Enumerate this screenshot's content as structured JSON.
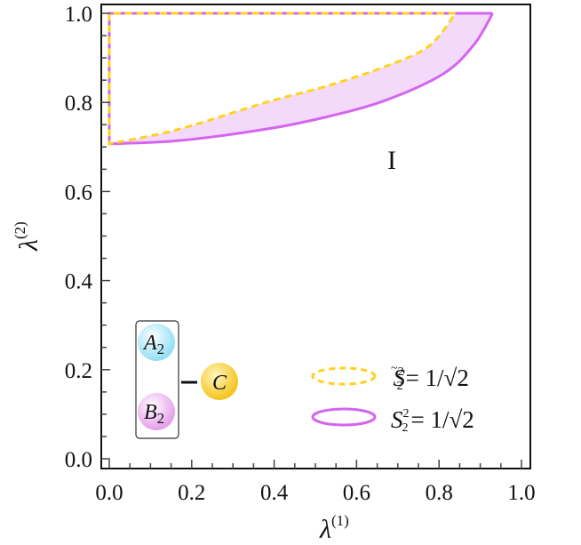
{
  "chart_data": {
    "type": "area",
    "xlabel": {
      "symbol": "λ",
      "sup": "(1)"
    },
    "ylabel": {
      "symbol": "λ",
      "sup": "(2)"
    },
    "xlim": [
      0,
      1
    ],
    "ylim": [
      0,
      1
    ],
    "x_ticks": [
      "0.0",
      "0.2",
      "0.4",
      "0.6",
      "0.8",
      "1.0"
    ],
    "y_ticks": [
      "0.0",
      "0.2",
      "0.4",
      "0.6",
      "0.8",
      "1.0"
    ],
    "grid": false,
    "region_label": "I",
    "series": [
      {
        "key": "tilde",
        "style": "dashed",
        "color": "#FFD21F",
        "legend": {
          "symbol": "S",
          "accent": "~",
          "sup": "2",
          "sub": "2",
          "rhs": "= 1/√2"
        },
        "boundary_points": [
          [
            0,
            0.707
          ],
          [
            0.166,
            0.739
          ],
          [
            0.38,
            0.8
          ],
          [
            0.525,
            0.836
          ],
          [
            0.668,
            0.88
          ],
          [
            0.775,
            0.926
          ],
          [
            0.84,
            1.0
          ]
        ]
      },
      {
        "key": "plain",
        "style": "solid",
        "color": "#D465F0",
        "legend": {
          "symbol": "S",
          "accent": "",
          "sup": "2",
          "sub": "2",
          "rhs": "= 1/√2"
        },
        "boundary_points": [
          [
            0,
            0.707
          ],
          [
            0.166,
            0.714
          ],
          [
            0.38,
            0.74
          ],
          [
            0.525,
            0.767
          ],
          [
            0.668,
            0.804
          ],
          [
            0.81,
            0.864
          ],
          [
            0.885,
            0.93
          ],
          [
            0.93,
            1.0
          ]
        ]
      }
    ],
    "fill_color": "#F4DAFA"
  },
  "schematic": {
    "a": {
      "letter": "A",
      "sub": "2",
      "color": "#8FDDF5"
    },
    "b": {
      "letter": "B",
      "sub": "2",
      "color": "#E59BEB"
    },
    "c": {
      "letter": "C",
      "color": "#F4C21A"
    }
  }
}
